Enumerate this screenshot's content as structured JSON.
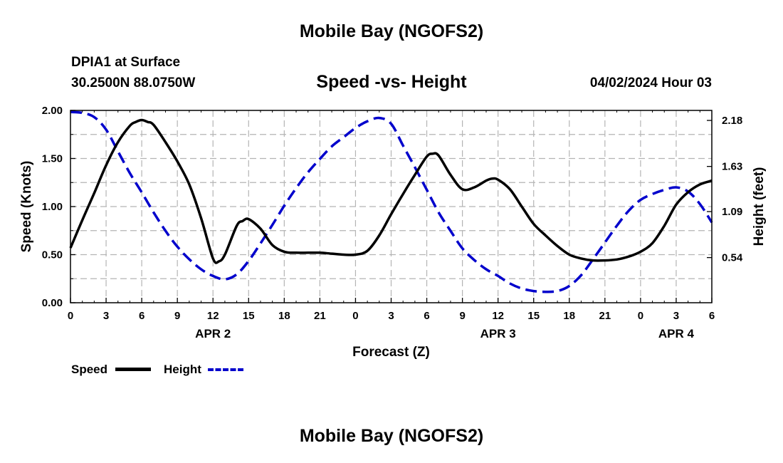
{
  "header": {
    "title": "Mobile Bay (NGOFS2)",
    "station": "DPIA1 at Surface",
    "coordinates": "30.2500N  88.0750W",
    "chart_title": "Speed -vs- Height",
    "datetime": "04/02/2024 Hour 03"
  },
  "footer": {
    "title": "Mobile Bay (NGOFS2)"
  },
  "legend": {
    "speed_label": "Speed",
    "height_label": "Height"
  },
  "colors": {
    "speed": "#000000",
    "height": "#0000cc",
    "grid": "#b4b4b4"
  },
  "chart_data": {
    "type": "line",
    "title": "Speed -vs- Height",
    "xlabel": "Forecast (Z)",
    "ylabel": "Speed (Knots)",
    "y2label": "Height (feet)",
    "xlim": [
      0,
      54
    ],
    "ylim": [
      0,
      2.0
    ],
    "y2lim": [
      0,
      2.3
    ],
    "x_ticks": [
      0,
      3,
      6,
      9,
      12,
      15,
      18,
      21,
      24,
      27,
      30,
      33,
      36,
      39,
      42,
      45,
      48,
      51,
      54
    ],
    "x_tick_labels": [
      "0",
      "3",
      "6",
      "9",
      "12",
      "15",
      "18",
      "21",
      "0",
      "3",
      "6",
      "9",
      "12",
      "15",
      "18",
      "21",
      "0",
      "3",
      "6"
    ],
    "date_labels": [
      {
        "x": 12,
        "label": "APR 2"
      },
      {
        "x": 36,
        "label": "APR 3"
      },
      {
        "x": 51,
        "label": "APR 4"
      }
    ],
    "y_ticks": [
      0,
      0.5,
      1.0,
      1.5,
      2.0
    ],
    "y_tick_labels": [
      "0.00",
      "0.50",
      "1.00",
      "1.50",
      "2.00"
    ],
    "y2_ticks": [
      0.54,
      1.09,
      1.63,
      2.18
    ],
    "y2_tick_labels": [
      "0.54",
      "1.09",
      "1.63",
      "2.18"
    ],
    "grid": true,
    "series": [
      {
        "name": "Speed",
        "axis": "left",
        "style": "solid",
        "x": [
          0,
          1,
          2,
          3,
          4,
          5,
          5.5,
          6,
          6.5,
          7,
          8,
          9,
          10,
          11,
          12,
          12.5,
          13,
          14,
          14.5,
          15,
          16,
          17,
          18,
          19,
          20,
          21,
          22,
          23,
          24,
          25,
          26,
          27,
          28,
          29,
          30,
          30.5,
          31,
          32,
          33,
          34,
          35,
          35.5,
          36,
          37,
          38,
          39,
          40,
          41,
          42,
          43,
          44,
          45,
          46,
          47,
          48,
          49,
          50,
          51,
          52,
          53,
          54
        ],
        "values": [
          0.57,
          0.86,
          1.14,
          1.43,
          1.67,
          1.84,
          1.88,
          1.9,
          1.88,
          1.85,
          1.67,
          1.47,
          1.23,
          0.88,
          0.46,
          0.43,
          0.5,
          0.8,
          0.85,
          0.87,
          0.77,
          0.6,
          0.53,
          0.52,
          0.52,
          0.52,
          0.51,
          0.5,
          0.5,
          0.54,
          0.7,
          0.92,
          1.13,
          1.33,
          1.52,
          1.55,
          1.53,
          1.33,
          1.18,
          1.2,
          1.27,
          1.29,
          1.28,
          1.18,
          1.0,
          0.82,
          0.7,
          0.59,
          0.5,
          0.46,
          0.44,
          0.44,
          0.45,
          0.48,
          0.53,
          0.62,
          0.8,
          1.02,
          1.15,
          1.23,
          1.27
        ]
      },
      {
        "name": "Height",
        "axis": "right",
        "style": "dashed",
        "x": [
          0,
          1,
          2,
          3,
          4,
          5,
          6,
          7,
          8,
          9,
          10,
          11,
          12,
          13,
          14,
          15,
          16,
          17,
          18,
          19,
          20,
          21,
          22,
          23,
          24,
          25,
          26,
          27,
          28,
          29,
          30,
          31,
          32,
          33,
          34,
          35,
          36,
          37,
          38,
          39,
          40,
          41,
          42,
          43,
          44,
          45,
          46,
          47,
          48,
          49,
          50,
          51,
          52,
          53,
          54
        ],
        "values": [
          2.28,
          2.27,
          2.22,
          2.07,
          1.81,
          1.55,
          1.32,
          1.08,
          0.86,
          0.67,
          0.52,
          0.4,
          0.32,
          0.28,
          0.34,
          0.5,
          0.71,
          0.93,
          1.16,
          1.37,
          1.56,
          1.72,
          1.87,
          1.98,
          2.09,
          2.17,
          2.21,
          2.14,
          1.88,
          1.62,
          1.35,
          1.08,
          0.86,
          0.65,
          0.51,
          0.4,
          0.32,
          0.23,
          0.17,
          0.14,
          0.13,
          0.14,
          0.2,
          0.33,
          0.52,
          0.72,
          0.92,
          1.1,
          1.23,
          1.3,
          1.35,
          1.38,
          1.33,
          1.18,
          0.96
        ]
      }
    ]
  }
}
